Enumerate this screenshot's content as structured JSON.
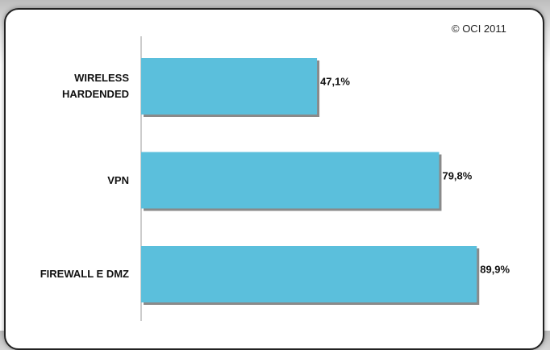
{
  "chart_data": {
    "type": "bar",
    "orientation": "horizontal",
    "annotation": "© OCI 2011",
    "categories": [
      "WIRELESS HARDENDED",
      "VPN",
      "FIREWALL E DMZ"
    ],
    "values": [
      47.1,
      79.8,
      89.9
    ],
    "value_labels": [
      "47,1%",
      "79,8%",
      "89,9%"
    ],
    "color": "#5bbfdc"
  }
}
